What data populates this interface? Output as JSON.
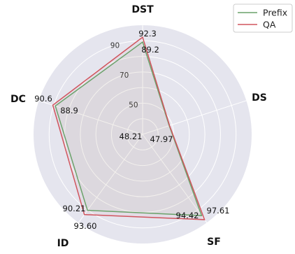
{
  "chart_data": {
    "type": "radar",
    "axes": [
      "DST",
      "DS",
      "SF",
      "ID",
      "DC"
    ],
    "rlim": [
      30,
      100
    ],
    "rticks": [
      50,
      70,
      90
    ],
    "grid": true,
    "legend_position": "top-right",
    "series": [
      {
        "name": "Prefix",
        "color": "#6aa26a",
        "values": [
          89.2,
          47.97,
          94.42,
          90.21,
          88.9
        ],
        "labels": [
          "89.2",
          "47.97",
          "94.42",
          "90.21",
          "88.9"
        ]
      },
      {
        "name": "QA",
        "color": "#d0555e",
        "values": [
          92.3,
          48.21,
          97.61,
          93.6,
          90.6
        ],
        "labels": [
          "92.3",
          "48.21",
          "97.61",
          "93.60",
          "90.6"
        ]
      }
    ]
  }
}
